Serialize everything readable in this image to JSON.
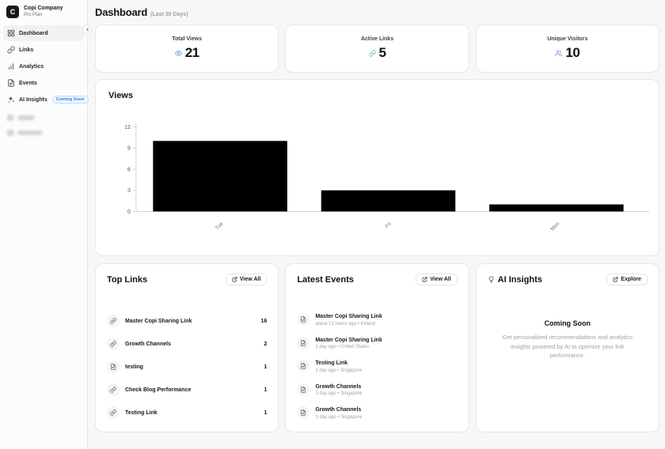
{
  "sidebar": {
    "company": {
      "logo_letter": "C",
      "name": "Copi Company",
      "plan": "Pro Plan"
    },
    "items": [
      {
        "label": "Dashboard",
        "icon": "grid-icon",
        "active": true
      },
      {
        "label": "Links",
        "icon": "link-icon"
      },
      {
        "label": "Analytics",
        "icon": "bar-chart-icon"
      },
      {
        "label": "Events",
        "icon": "document-icon"
      },
      {
        "label": "AI Insights",
        "icon": "sparkles-icon",
        "badge": "Coming Soon"
      }
    ],
    "badge_color": "#3b82f6"
  },
  "header": {
    "title": "Dashboard",
    "subtitle": "(Last 30 Days)"
  },
  "stats": [
    {
      "label": "Total Views",
      "value": "21",
      "icon": "eye-icon",
      "color": "#6ea3f7"
    },
    {
      "label": "Active Links",
      "value": "5",
      "icon": "link-icon",
      "color": "#4ac885"
    },
    {
      "label": "Unique Visitors",
      "value": "10",
      "icon": "users-icon",
      "color": "#c084fc"
    }
  ],
  "chart_data": {
    "type": "bar",
    "title": "Views",
    "categories": [
      "Tue",
      "Fri",
      "Mon"
    ],
    "values": [
      10,
      3,
      1
    ],
    "yticks": [
      0,
      3,
      6,
      9,
      12
    ],
    "ylim": [
      0,
      12
    ],
    "xlabel": "",
    "ylabel": "",
    "grid": false,
    "legend": false,
    "bar_color": "#000000",
    "axis_color": "#d4d4d8"
  },
  "top_links": {
    "title": "Top Links",
    "view_all_label": "View All",
    "items": [
      {
        "name": "Master Copi Sharing Link",
        "count": "16",
        "icon": "link-icon"
      },
      {
        "name": "Growth Channels",
        "count": "2",
        "icon": "link-icon"
      },
      {
        "name": "testing",
        "count": "1",
        "icon": "document-icon"
      },
      {
        "name": "Check Blog Performance",
        "count": "1",
        "icon": "link-icon"
      },
      {
        "name": "Testing Link",
        "count": "1",
        "icon": "link-icon"
      }
    ]
  },
  "latest_events": {
    "title": "Latest Events",
    "view_all_label": "View All",
    "items": [
      {
        "name": "Master Copi Sharing Link",
        "meta": "about 12 hours ago • Ireland",
        "icon": "document-icon"
      },
      {
        "name": "Master Copi Sharing Link",
        "meta": "1 day ago • United States",
        "icon": "document-icon"
      },
      {
        "name": "Testing Link",
        "meta": "1 day ago • Singapore",
        "icon": "document-icon"
      },
      {
        "name": "Growth Channels",
        "meta": "1 day ago • Singapore",
        "icon": "document-icon"
      },
      {
        "name": "Growth Channels",
        "meta": "1 day ago • Singapore",
        "icon": "document-icon"
      }
    ]
  },
  "ai_insights": {
    "title": "AI Insights",
    "explore_label": "Explore",
    "coming_soon": "Coming Soon",
    "description": "Get personalized recommendations and analytics insights powered by AI to optimize your link performance."
  }
}
